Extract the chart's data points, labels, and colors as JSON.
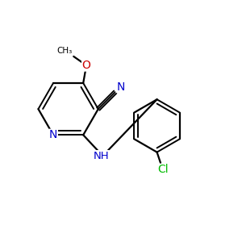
{
  "bg_color": "#ffffff",
  "bond_color": "#000000",
  "nitrogen_color": "#0000cc",
  "oxygen_color": "#cc0000",
  "chlorine_color": "#00bb00",
  "fig_width": 3.0,
  "fig_height": 3.0,
  "dpi": 100,
  "xlim": [
    0,
    10
  ],
  "ylim": [
    0,
    10
  ]
}
